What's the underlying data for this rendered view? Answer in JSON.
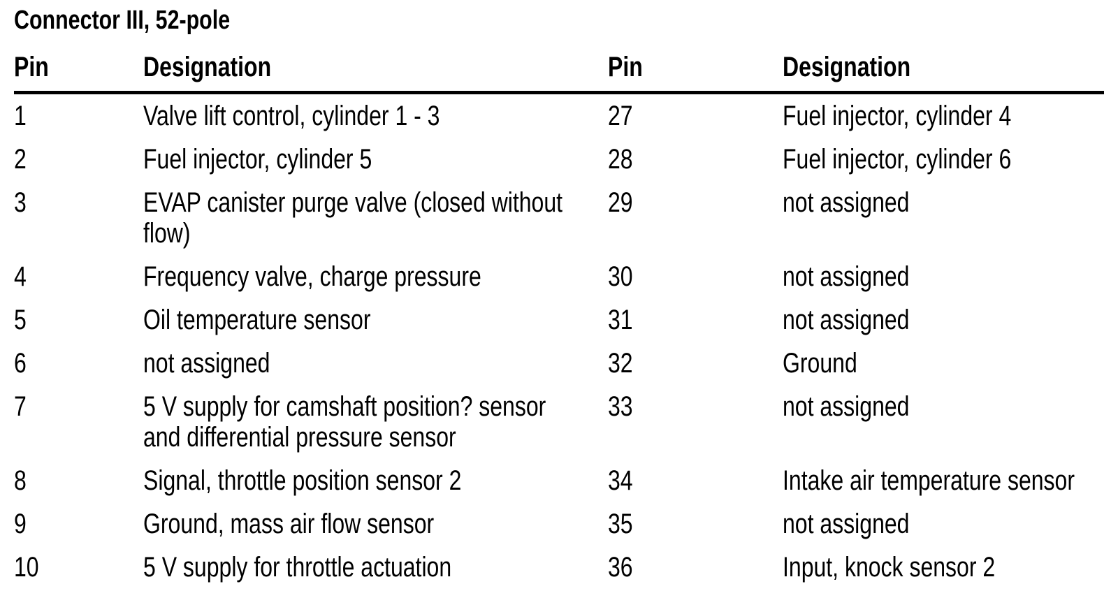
{
  "page": {
    "title": "Connector III, 52-pole"
  },
  "table": {
    "headers": [
      "Pin",
      "Designation",
      "Pin",
      "Designation"
    ],
    "rows": [
      {
        "pin_left": "1",
        "designation_left": "Valve lift control, cylinder 1 - 3",
        "pin_right": "27",
        "designation_right": "Fuel injector, cylinder 4"
      },
      {
        "pin_left": "2",
        "designation_left": "Fuel injector, cylinder 5",
        "pin_right": "28",
        "designation_right": "Fuel injector, cylinder 6"
      },
      {
        "pin_left": "3",
        "designation_left": "EVAP canister purge valve (closed without\nflow)",
        "pin_right": "29",
        "designation_right": "not assigned"
      },
      {
        "pin_left": "4",
        "designation_left": "Frequency valve, charge pressure",
        "pin_right": "30",
        "designation_right": "not assigned"
      },
      {
        "pin_left": "5",
        "designation_left": "Oil temperature sensor",
        "pin_right": "31",
        "designation_right": "not assigned"
      },
      {
        "pin_left": "6",
        "designation_left": "not assigned",
        "pin_right": "32",
        "designation_right": "Ground"
      },
      {
        "pin_left": "7",
        "designation_left": "5 V supply for camshaft position? sensor\nand differential pressure sensor",
        "pin_right": "33",
        "designation_right": "not assigned"
      },
      {
        "pin_left": "8",
        "designation_left": "Signal, throttle position sensor 2",
        "pin_right": "34",
        "designation_right": "Intake air temperature sensor"
      },
      {
        "pin_left": "9",
        "designation_left": "Ground, mass air flow sensor",
        "pin_right": "35",
        "designation_right": "not assigned"
      },
      {
        "pin_left": "10",
        "designation_left": "5 V supply for throttle actuation",
        "pin_right": "36",
        "designation_right": "Input, knock sensor 2"
      }
    ]
  },
  "colors": {
    "text": "#000000",
    "background": "#ffffff",
    "rule": "#000000"
  }
}
